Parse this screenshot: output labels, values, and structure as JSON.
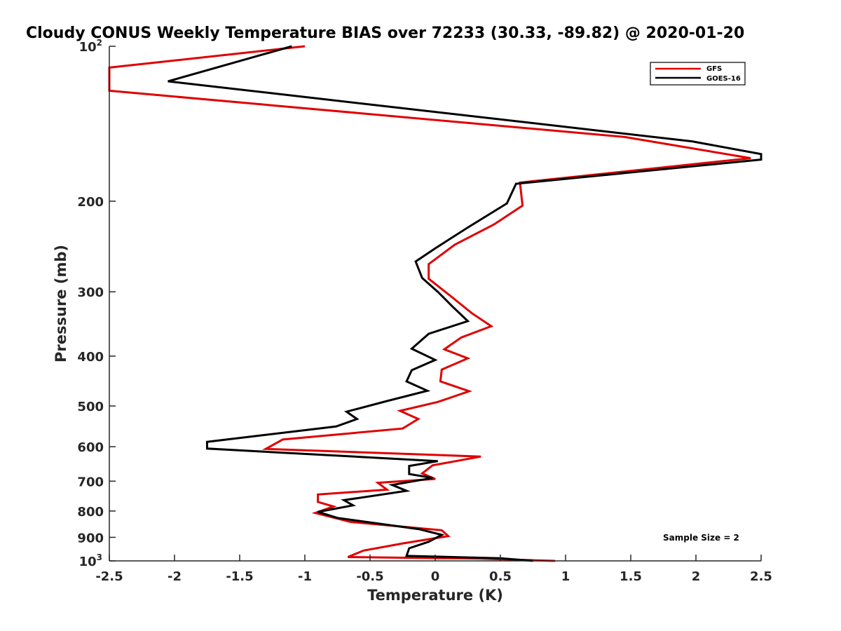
{
  "chart_data": {
    "type": "line",
    "title": "Cloudy CONUS Weekly Temperature BIAS over 72233 (30.33, -89.82) @ 2020-01-20",
    "xlabel": "Temperature (K)",
    "ylabel": "Pressure (mb)",
    "xlim": [
      -2.5,
      2.5
    ],
    "ylim": [
      100,
      1000
    ],
    "y_scale": "log",
    "y_reversed": true,
    "x_ticks": [
      "-2.5",
      "-2",
      "-1.5",
      "-1",
      "-0.5",
      "0",
      "0.5",
      "1",
      "1.5",
      "2",
      "2.5"
    ],
    "x_tick_values": [
      -2.5,
      -2,
      -1.5,
      -1,
      -0.5,
      0,
      0.5,
      1,
      1.5,
      2,
      2.5
    ],
    "y_ticks": [
      {
        "value": 100,
        "base": "10",
        "exp": "2"
      },
      {
        "value": 200,
        "label": "200"
      },
      {
        "value": 300,
        "label": "300"
      },
      {
        "value": 400,
        "label": "400"
      },
      {
        "value": 500,
        "label": "500"
      },
      {
        "value": 600,
        "label": "600"
      },
      {
        "value": 700,
        "label": "700"
      },
      {
        "value": 800,
        "label": "800"
      },
      {
        "value": 900,
        "label": "900"
      },
      {
        "value": 1000,
        "base": "10",
        "exp": "3"
      }
    ],
    "legend": {
      "position": "top-right"
    },
    "annotation": "Sample Size = 2",
    "series": [
      {
        "name": "GFS",
        "color": "#e00000",
        "points": [
          [
            -1.0,
            100
          ],
          [
            -2.5,
            110
          ],
          [
            -2.5,
            122
          ],
          [
            1.45,
            150
          ],
          [
            2.42,
            165
          ],
          [
            0.65,
            184
          ],
          [
            0.67,
            204
          ],
          [
            0.45,
            222
          ],
          [
            0.15,
            243
          ],
          [
            -0.05,
            265
          ],
          [
            -0.05,
            283
          ],
          [
            0.12,
            306
          ],
          [
            0.28,
            330
          ],
          [
            0.43,
            350
          ],
          [
            0.2,
            368
          ],
          [
            0.07,
            388
          ],
          [
            0.25,
            404
          ],
          [
            0.05,
            425
          ],
          [
            0.04,
            448
          ],
          [
            0.26,
            468
          ],
          [
            0.02,
            491
          ],
          [
            -0.27,
            511
          ],
          [
            -0.13,
            530
          ],
          [
            -0.25,
            553
          ],
          [
            -1.17,
            581
          ],
          [
            -1.3,
            606
          ],
          [
            0.35,
            627
          ],
          [
            -0.02,
            652
          ],
          [
            -0.1,
            676
          ],
          [
            0.0,
            693
          ],
          [
            -0.44,
            705
          ],
          [
            -0.37,
            727
          ],
          [
            -0.9,
            743
          ],
          [
            -0.9,
            768
          ],
          [
            -0.78,
            784
          ],
          [
            -0.92,
            807
          ],
          [
            -0.65,
            840
          ],
          [
            0.05,
            872
          ],
          [
            0.1,
            895
          ],
          [
            -0.25,
            925
          ],
          [
            -0.55,
            955
          ],
          [
            -0.67,
            983
          ],
          [
            0.35,
            990
          ],
          [
            0.92,
            1000
          ]
        ]
      },
      {
        "name": "GOES-16",
        "color": "#000000",
        "points": [
          [
            -1.1,
            100
          ],
          [
            -2.05,
            117
          ],
          [
            1.97,
            153
          ],
          [
            2.5,
            162
          ],
          [
            2.5,
            166
          ],
          [
            0.62,
            185
          ],
          [
            0.55,
            202
          ],
          [
            0.25,
            225
          ],
          [
            0.0,
            247
          ],
          [
            -0.15,
            262
          ],
          [
            -0.1,
            282
          ],
          [
            0.02,
            300
          ],
          [
            0.13,
            320
          ],
          [
            0.25,
            342
          ],
          [
            -0.05,
            362
          ],
          [
            -0.18,
            387
          ],
          [
            0.0,
            407
          ],
          [
            -0.18,
            426
          ],
          [
            -0.22,
            448
          ],
          [
            -0.06,
            467
          ],
          [
            -0.37,
            489
          ],
          [
            -0.68,
            513
          ],
          [
            -0.6,
            530
          ],
          [
            -0.76,
            548
          ],
          [
            -1.75,
            587
          ],
          [
            -1.75,
            605
          ],
          [
            0.02,
            640
          ],
          [
            -0.2,
            654
          ],
          [
            -0.2,
            678
          ],
          [
            -0.02,
            690
          ],
          [
            -0.33,
            712
          ],
          [
            -0.22,
            731
          ],
          [
            -0.7,
            762
          ],
          [
            -0.63,
            780
          ],
          [
            -0.9,
            803
          ],
          [
            -0.75,
            825
          ],
          [
            -0.12,
            868
          ],
          [
            0.05,
            890
          ],
          [
            -0.05,
            918
          ],
          [
            -0.2,
            945
          ],
          [
            -0.22,
            978
          ],
          [
            0.5,
            988
          ],
          [
            0.75,
            1000
          ]
        ]
      }
    ]
  }
}
